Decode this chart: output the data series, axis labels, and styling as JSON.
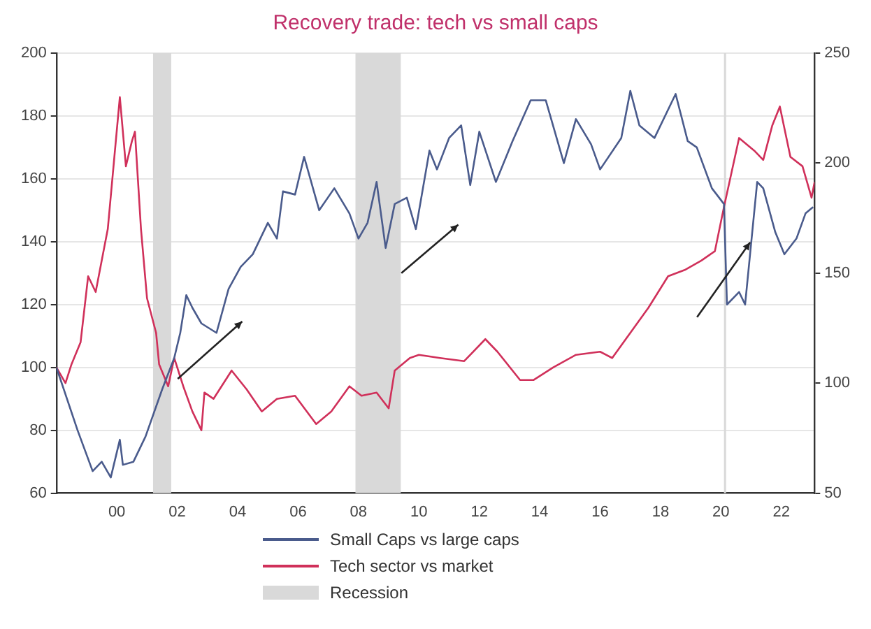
{
  "chart_data": {
    "type": "line",
    "title": "Recovery trade: tech vs small caps",
    "series": [
      {
        "name": "Small Caps vs large caps",
        "color": "#4a5b8c",
        "x": [
          1998.0,
          1998.7,
          1999.2,
          1999.5,
          1999.8,
          2000.1,
          2000.2,
          2000.55,
          2000.95,
          2001.5,
          2001.9,
          2002.1,
          2002.3,
          2002.5,
          2002.8,
          2003.3,
          2003.7,
          2004.1,
          2004.5,
          2005.0,
          2005.3,
          2005.5,
          2005.9,
          2006.2,
          2006.7,
          2007.2,
          2007.7,
          2008.0,
          2008.3,
          2008.6,
          2008.9,
          2009.2,
          2009.6,
          2009.9,
          2010.35,
          2010.6,
          2011.0,
          2011.4,
          2011.7,
          2012.0,
          2012.55,
          2013.1,
          2013.7,
          2014.2,
          2014.8,
          2015.2,
          2015.7,
          2016.0,
          2016.7,
          2017.0,
          2017.3,
          2017.8,
          2018.5,
          2018.9,
          2019.2,
          2019.7,
          2020.1,
          2020.2,
          2020.6,
          2020.8,
          2021.2,
          2021.4,
          2021.8,
          2022.1,
          2022.5,
          2022.8,
          2023.05
        ],
        "values": [
          100,
          80,
          67,
          70,
          65,
          77,
          69,
          70,
          78,
          93,
          103,
          111,
          123,
          119,
          114,
          111,
          125,
          132,
          136,
          146,
          141,
          156,
          155,
          167,
          150,
          157,
          149,
          141,
          146,
          159,
          138,
          152,
          154,
          144,
          169,
          163,
          173,
          177,
          158,
          175,
          159,
          172,
          185,
          185,
          165,
          179,
          171,
          163,
          173,
          188,
          177,
          173,
          187,
          172,
          170,
          157,
          152,
          120,
          124,
          120,
          159,
          157,
          143,
          136,
          141,
          149,
          151
        ]
      },
      {
        "name": "Tech sector vs market",
        "color": "#d0305a",
        "x": [
          1998.0,
          1998.3,
          1998.5,
          1998.8,
          1999.05,
          1999.3,
          1999.7,
          1999.9,
          2000.1,
          2000.3,
          2000.5,
          2000.6,
          2000.8,
          2001.0,
          2001.3,
          2001.4,
          2001.7,
          2001.9,
          2002.2,
          2002.5,
          2002.8,
          2002.9,
          2003.2,
          2003.8,
          2004.3,
          2004.8,
          2005.3,
          2005.9,
          2006.6,
          2007.1,
          2007.7,
          2008.1,
          2008.6,
          2009.0,
          2009.2,
          2009.7,
          2010.0,
          2010.7,
          2011.5,
          2012.2,
          2012.6,
          2013.35,
          2013.8,
          2014.45,
          2015.2,
          2016.0,
          2016.4,
          2017.0,
          2017.6,
          2018.25,
          2018.8,
          2019.35,
          2019.8,
          2020.1,
          2020.6,
          2021.1,
          2021.4,
          2021.7,
          2021.95,
          2022.3,
          2022.7,
          2023.0,
          2023.1
        ],
        "values": [
          100,
          95,
          101,
          108,
          129,
          124,
          144,
          165,
          186,
          164,
          172,
          175,
          144,
          122,
          111,
          101,
          94,
          103,
          94,
          86,
          80,
          92,
          90,
          99,
          93,
          86,
          90,
          91,
          82,
          86,
          94,
          91,
          92,
          87,
          99,
          103,
          104,
          103,
          102,
          109,
          105,
          96,
          96,
          100,
          104,
          105,
          103,
          111,
          119,
          129,
          131,
          134,
          137,
          151,
          173,
          169,
          166,
          177,
          183,
          167,
          164,
          154,
          159
        ]
      }
    ],
    "xlim": [
      1998.0,
      2023.1
    ],
    "xticks": [
      {
        "value": 2000,
        "label": "00"
      },
      {
        "value": 2002,
        "label": "02"
      },
      {
        "value": 2004,
        "label": "04"
      },
      {
        "value": 2006,
        "label": "06"
      },
      {
        "value": 2008,
        "label": "08"
      },
      {
        "value": 2010,
        "label": "10"
      },
      {
        "value": 2012,
        "label": "12"
      },
      {
        "value": 2014,
        "label": "14"
      },
      {
        "value": 2016,
        "label": "16"
      },
      {
        "value": 2018,
        "label": "18"
      },
      {
        "value": 2020,
        "label": "20"
      },
      {
        "value": 2022,
        "label": "22"
      }
    ],
    "ylim": [
      60,
      200
    ],
    "yticks": [
      60,
      80,
      100,
      120,
      140,
      160,
      180,
      200
    ],
    "y2lim": [
      50,
      250
    ],
    "y2ticks": [
      50,
      100,
      150,
      200,
      250
    ],
    "bands": [
      {
        "axis": "x",
        "from": 2001.2,
        "to": 2001.8,
        "label": "Recession",
        "color": "#d9d9d9"
      },
      {
        "axis": "x",
        "from": 2007.9,
        "to": 2009.4,
        "color": "#d9d9d9"
      },
      {
        "axis": "x",
        "from": 2020.1,
        "to": 2020.17,
        "color": "#d9d9d9"
      }
    ],
    "grid": "y",
    "legend": "bottom",
    "marker": "none",
    "line_style": "solid"
  }
}
